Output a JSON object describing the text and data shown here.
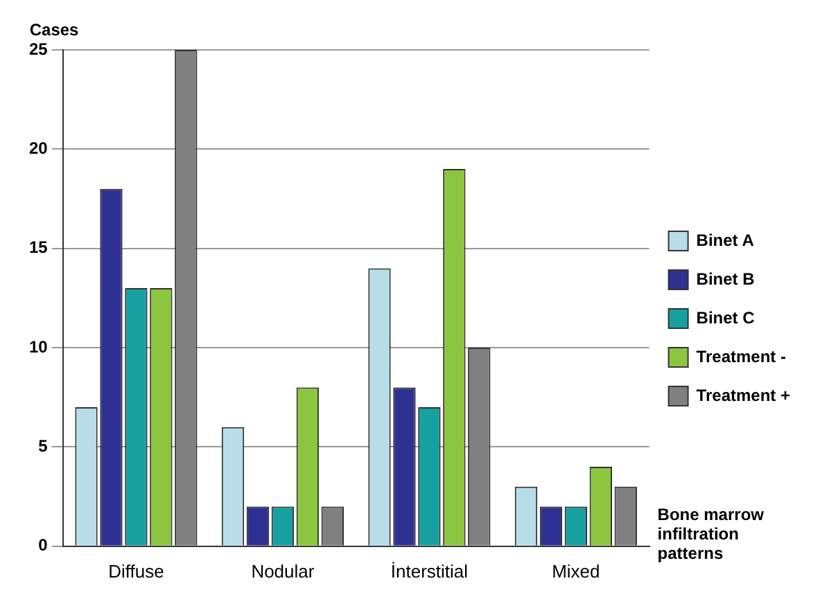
{
  "chart_data": {
    "type": "bar",
    "ylabel": "Cases",
    "xlabel": "Bone marrow infiltration patterns",
    "categories": [
      "Diffuse",
      "Nodular",
      "İnterstitial",
      "Mixed"
    ],
    "series": [
      {
        "name": "Binet A",
        "color": "#b7dde8",
        "values": [
          7,
          6,
          14,
          3
        ]
      },
      {
        "name": "Binet B",
        "color": "#2e3192",
        "values": [
          18,
          2,
          8,
          2
        ]
      },
      {
        "name": "Binet C",
        "color": "#16a0a0",
        "values": [
          13,
          2,
          7,
          2
        ]
      },
      {
        "name": "Treatment -",
        "color": "#8cc63f",
        "values": [
          13,
          8,
          19,
          4
        ]
      },
      {
        "name": "Treatment +",
        "color": "#808080",
        "values": [
          25,
          2,
          10,
          3
        ]
      }
    ],
    "ylim": [
      0,
      25
    ],
    "yticks": [
      0,
      5,
      10,
      15,
      20,
      25
    ],
    "grid": "y",
    "legend": "right"
  }
}
